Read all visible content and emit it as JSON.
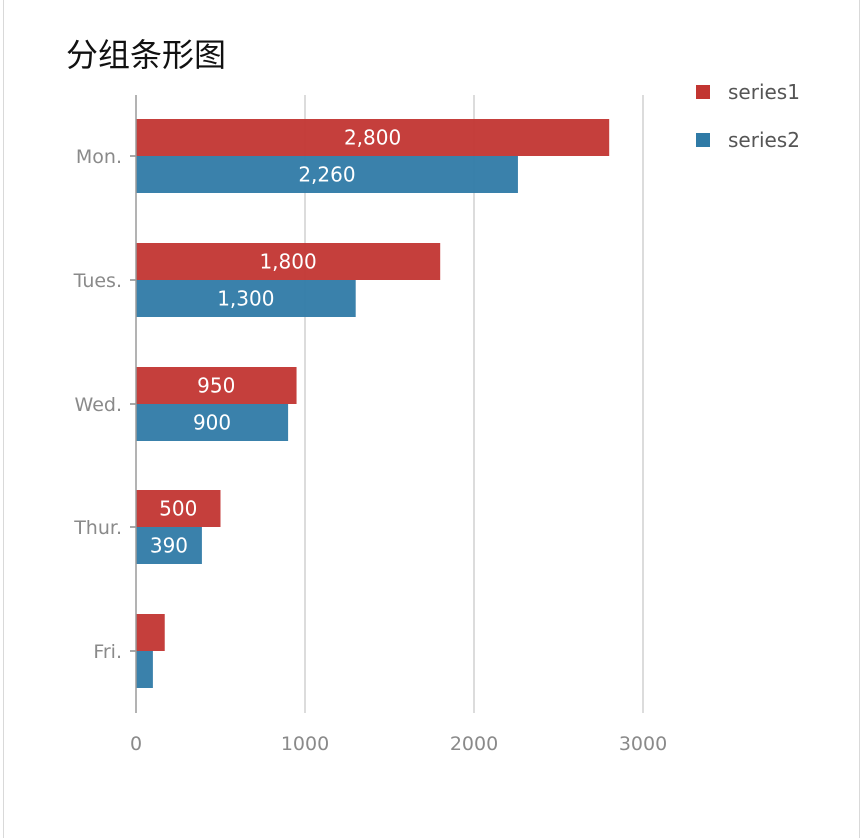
{
  "chart_data": {
    "type": "bar",
    "orientation": "horizontal",
    "title": "分组条形图",
    "categories": [
      "Mon.",
      "Tues.",
      "Wed.",
      "Thur.",
      "Fri."
    ],
    "series": [
      {
        "name": "series1",
        "color": "#c23531",
        "values": [
          2800,
          1800,
          950,
          500,
          170
        ],
        "labels": [
          "2,800",
          "1,800",
          "950",
          "500",
          ""
        ]
      },
      {
        "name": "series2",
        "color": "#2f7aa6",
        "values": [
          2260,
          1300,
          900,
          390,
          100
        ],
        "labels": [
          "2,260",
          "1,300",
          "900",
          "390",
          ""
        ]
      }
    ],
    "xlim": [
      0,
      3000
    ],
    "x_ticks": [
      "0",
      "1000",
      "2000",
      "3000"
    ],
    "grid": true,
    "legend_position": "top-right"
  }
}
